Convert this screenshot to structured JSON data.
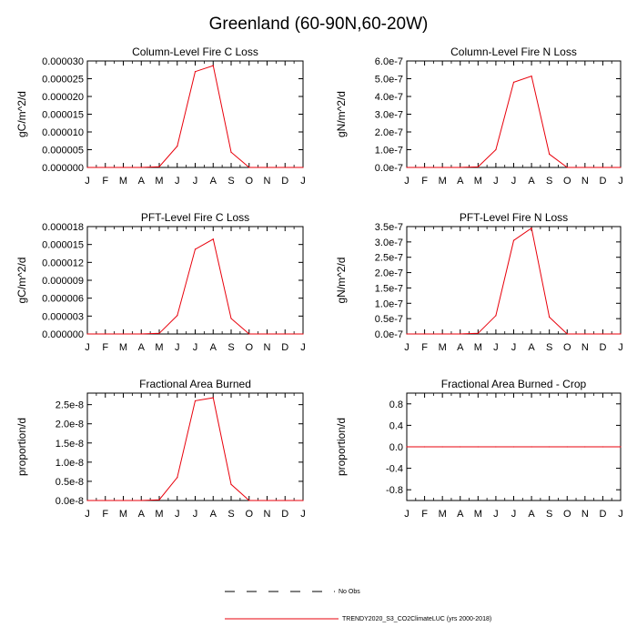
{
  "figure": {
    "title": "Greenland (60-90N,60-20W)",
    "series_color": "#e8000b",
    "obs_line_color": "#000000"
  },
  "legend": {
    "entries": [
      {
        "label": "No Obs",
        "style": "dashed",
        "color": "#000000"
      },
      {
        "label": "TRENDY2020_S3_CO2ClimateLUC (yrs 2000-2018)",
        "style": "solid",
        "color": "#e8000b"
      }
    ]
  },
  "chart_data": [
    {
      "type": "line",
      "title": "Column-Level Fire C Loss",
      "xlabel": "",
      "ylabel": "gC/m^2/d",
      "x": [
        "J",
        "F",
        "M",
        "A",
        "M",
        "J",
        "J",
        "A",
        "S",
        "O",
        "N",
        "D",
        "J"
      ],
      "ylim": [
        0,
        3e-05
      ],
      "yticks": [
        0,
        5e-06,
        1e-05,
        1.5e-05,
        2e-05,
        2.5e-05,
        3e-05
      ],
      "ytick_labels": [
        "0.000000",
        "0.000005",
        "0.000010",
        "0.000015",
        "0.000020",
        "0.000025",
        "0.000030"
      ],
      "series": [
        {
          "values": [
            0,
            0,
            0,
            0,
            2e-07,
            6e-06,
            2.7e-05,
            2.87e-05,
            4.3e-06,
            0,
            0,
            0,
            0
          ]
        }
      ]
    },
    {
      "type": "line",
      "title": "Column-Level Fire N Loss",
      "xlabel": "",
      "ylabel": "gN/m^2/d",
      "x": [
        "J",
        "F",
        "M",
        "A",
        "M",
        "J",
        "J",
        "A",
        "S",
        "O",
        "N",
        "D",
        "J"
      ],
      "ylim": [
        0,
        6e-07
      ],
      "yticks": [
        0,
        1e-07,
        2e-07,
        3e-07,
        4e-07,
        5e-07,
        6e-07
      ],
      "ytick_labels": [
        "0.0e-7",
        "1.0e-7",
        "2.0e-7",
        "3.0e-7",
        "4.0e-7",
        "5.0e-7",
        "6.0e-7"
      ],
      "series": [
        {
          "values": [
            0,
            0,
            0,
            0,
            3e-09,
            1e-07,
            4.8e-07,
            5.15e-07,
            7.5e-08,
            0,
            0,
            0,
            0
          ]
        }
      ]
    },
    {
      "type": "line",
      "title": "PFT-Level Fire C Loss",
      "xlabel": "",
      "ylabel": "gC/m^2/d",
      "x": [
        "J",
        "F",
        "M",
        "A",
        "M",
        "J",
        "J",
        "A",
        "S",
        "O",
        "N",
        "D",
        "J"
      ],
      "ylim": [
        0,
        1.8e-05
      ],
      "yticks": [
        0,
        3e-06,
        6e-06,
        9e-06,
        1.2e-05,
        1.5e-05,
        1.8e-05
      ],
      "ytick_labels": [
        "0.000000",
        "0.000003",
        "0.000006",
        "0.000009",
        "0.000012",
        "0.000015",
        "0.000018"
      ],
      "series": [
        {
          "values": [
            0,
            0,
            0,
            0,
            1e-07,
            3.1e-06,
            1.42e-05,
            1.59e-05,
            2.6e-06,
            0,
            0,
            0,
            0
          ]
        }
      ]
    },
    {
      "type": "line",
      "title": "PFT-Level Fire N Loss",
      "xlabel": "",
      "ylabel": "gN/m^2/d",
      "x": [
        "J",
        "F",
        "M",
        "A",
        "M",
        "J",
        "J",
        "A",
        "S",
        "O",
        "N",
        "D",
        "J"
      ],
      "ylim": [
        0,
        3.5e-07
      ],
      "yticks": [
        0,
        5e-08,
        1e-07,
        1.5e-07,
        2e-07,
        2.5e-07,
        3e-07,
        3.5e-07
      ],
      "ytick_labels": [
        "0.0e-7",
        "0.5e-7",
        "1.0e-7",
        "1.5e-7",
        "2.0e-7",
        "2.5e-7",
        "3.0e-7",
        "3.5e-7"
      ],
      "series": [
        {
          "values": [
            0,
            0,
            0,
            0,
            2e-09,
            6e-08,
            3.05e-07,
            3.45e-07,
            5.5e-08,
            0,
            0,
            0,
            0
          ]
        }
      ]
    },
    {
      "type": "line",
      "title": "Fractional Area Burned",
      "xlabel": "",
      "ylabel": "proportion/d",
      "x": [
        "J",
        "F",
        "M",
        "A",
        "M",
        "J",
        "J",
        "A",
        "S",
        "O",
        "N",
        "D",
        "J"
      ],
      "ylim": [
        0,
        2.8e-08
      ],
      "yticks": [
        0,
        5e-09,
        1e-08,
        1.5e-08,
        2e-08,
        2.5e-08
      ],
      "ytick_labels": [
        "0.0e-8",
        "0.5e-8",
        "1.0e-8",
        "1.5e-8",
        "2.0e-8",
        "2.5e-8"
      ],
      "series": [
        {
          "values": [
            0,
            0,
            0,
            0,
            2e-10,
            6e-09,
            2.6e-08,
            2.68e-08,
            4.2e-09,
            0,
            0,
            0,
            0
          ]
        }
      ]
    },
    {
      "type": "line",
      "title": "Fractional Area Burned - Crop",
      "xlabel": "",
      "ylabel": "proportion/d",
      "x": [
        "J",
        "F",
        "M",
        "A",
        "M",
        "J",
        "J",
        "A",
        "S",
        "O",
        "N",
        "D",
        "J"
      ],
      "ylim": [
        -1,
        1
      ],
      "yticks": [
        -0.8,
        -0.4,
        0,
        0.4,
        0.8
      ],
      "ytick_labels": [
        "-0.8",
        "-0.4",
        "0.0",
        "0.4",
        "0.8"
      ],
      "series": [
        {
          "values": [
            0,
            0,
            0,
            0,
            0,
            0,
            0,
            0,
            0,
            0,
            0,
            0,
            0
          ]
        }
      ]
    }
  ]
}
